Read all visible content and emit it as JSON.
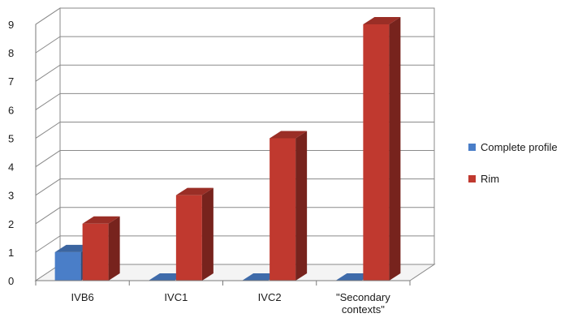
{
  "chart_data": {
    "type": "bar",
    "title": "",
    "xlabel": "",
    "ylabel": "",
    "categories": [
      "IVB6",
      "IVC1",
      "IVC2",
      "\"Secondary contexts\""
    ],
    "series": [
      {
        "name": "Complete profile",
        "values": [
          1,
          0,
          0,
          0
        ],
        "color": "#4a7ec8"
      },
      {
        "name": "Rim",
        "values": [
          2,
          3,
          5,
          9
        ],
        "color": "#c0392f"
      }
    ],
    "ylim": [
      0,
      9
    ],
    "yticks": [
      "0",
      "1",
      "2",
      "3",
      "4",
      "5",
      "6",
      "7",
      "8",
      "9"
    ],
    "grid": true,
    "legend_position": "right",
    "style": "3d-column"
  }
}
